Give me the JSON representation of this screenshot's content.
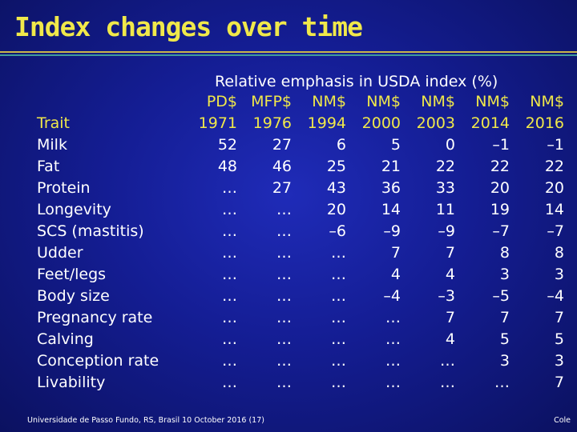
{
  "title": "Index changes over time",
  "column_header": "Relative emphasis in USDA index (%)",
  "index_row": [
    "PD$",
    "MFP$",
    "NM$",
    "NM$",
    "NM$",
    "NM$",
    "NM$"
  ],
  "year_row": {
    "label": "Trait",
    "years": [
      "1971",
      "1976",
      "1994",
      "2000",
      "2003",
      "2014",
      "2016"
    ]
  },
  "rows": [
    {
      "trait": "Milk",
      "values": [
        "52",
        "27",
        "6",
        "5",
        "0",
        "–1",
        "–1"
      ]
    },
    {
      "trait": "Fat",
      "values": [
        "48",
        "46",
        "25",
        "21",
        "22",
        "22",
        "22"
      ]
    },
    {
      "trait": "Protein",
      "values": [
        "…",
        "27",
        "43",
        "36",
        "33",
        "20",
        "20"
      ]
    },
    {
      "trait": "Longevity",
      "values": [
        "…",
        "…",
        "20",
        "14",
        "11",
        "19",
        "14"
      ]
    },
    {
      "trait": "SCS (mastitis)",
      "values": [
        "…",
        "…",
        "–6",
        "–9",
        "–9",
        "–7",
        "–7"
      ]
    },
    {
      "trait": "Udder",
      "values": [
        "…",
        "…",
        "…",
        "7",
        "7",
        "8",
        "8"
      ]
    },
    {
      "trait": "Feet/legs",
      "values": [
        "…",
        "…",
        "…",
        "4",
        "4",
        "3",
        "3"
      ]
    },
    {
      "trait": "Body size",
      "values": [
        "…",
        "…",
        "…",
        "–4",
        "–3",
        "–5",
        "–4"
      ]
    },
    {
      "trait": "Pregnancy rate",
      "values": [
        "…",
        "…",
        "…",
        "…",
        "7",
        "7",
        "7"
      ]
    },
    {
      "trait": "Calving",
      "values": [
        "…",
        "…",
        "…",
        "…",
        "4",
        "5",
        "5"
      ]
    },
    {
      "trait": "Conception rate",
      "values": [
        "…",
        "…",
        "…",
        "…",
        "…",
        "3",
        "3"
      ]
    },
    {
      "trait": "Livability",
      "values": [
        "…",
        "…",
        "…",
        "…",
        "…",
        "…",
        "7"
      ]
    }
  ],
  "footer": {
    "left": "Universidade de Passo Fundo, RS, Brasil 10 October 2016 (17)",
    "right": "Cole"
  }
}
